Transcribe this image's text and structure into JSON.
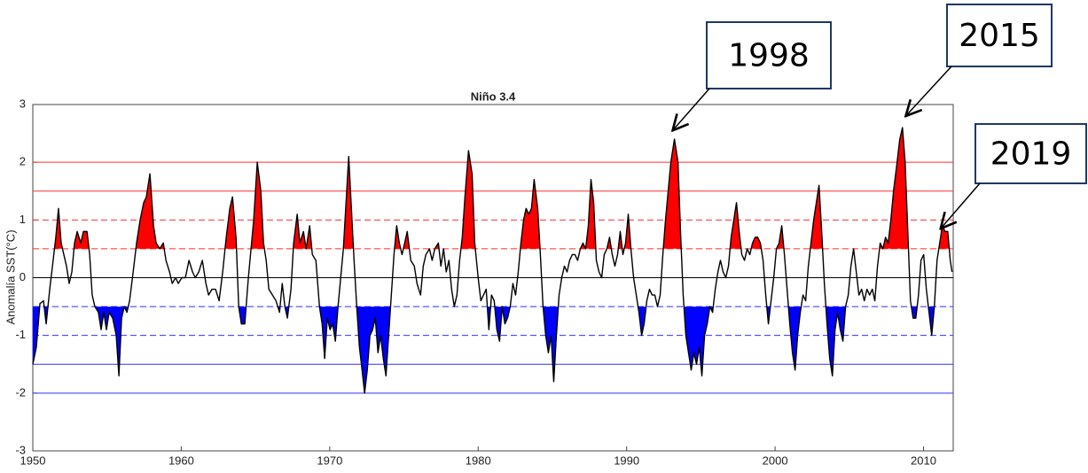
{
  "chart_data": {
    "type": "line",
    "title": "Niño 3.4",
    "y_label": "Anomalía SST(°C)",
    "xlim": [
      1950,
      2012
    ],
    "xticks": [
      1950,
      1960,
      1970,
      1980,
      1990,
      2000,
      2010
    ],
    "ylim": [
      -3,
      3
    ],
    "yticks": [
      -3,
      -2,
      -1,
      0,
      1,
      2,
      3
    ],
    "hlines": [
      {
        "y": 2,
        "color": "#ff3030",
        "style": "solid"
      },
      {
        "y": 1.5,
        "color": "#ff3030",
        "style": "solid"
      },
      {
        "y": 1,
        "color": "#ff3030",
        "style": "dashed"
      },
      {
        "y": 0.5,
        "color": "#ff3030",
        "style": "dashed"
      },
      {
        "y": 0,
        "color": "#000000",
        "style": "solid"
      },
      {
        "y": -0.5,
        "color": "#3030ff",
        "style": "dashed"
      },
      {
        "y": -1,
        "color": "#3030ff",
        "style": "dashed"
      },
      {
        "y": -1.5,
        "color": "#3030ff",
        "style": "solid"
      },
      {
        "y": -2,
        "color": "#3030ff",
        "style": "solid"
      }
    ],
    "fill_above": {
      "threshold": 0.5,
      "color": "#ff0000"
    },
    "fill_below": {
      "threshold": -0.5,
      "color": "#0000ff"
    },
    "line_color": "#000000",
    "x": [
      1950.0,
      1950.24,
      1950.48,
      1950.72,
      1950.9,
      1951.14,
      1951.37,
      1951.55,
      1951.73,
      1951.91,
      1952.09,
      1952.27,
      1952.45,
      1952.63,
      1952.81,
      1952.99,
      1953.23,
      1953.41,
      1953.65,
      1953.83,
      1954.0,
      1954.18,
      1954.42,
      1954.6,
      1954.78,
      1954.96,
      1955.14,
      1955.38,
      1955.62,
      1955.8,
      1955.98,
      1956.16,
      1956.34,
      1956.52,
      1956.76,
      1956.99,
      1957.23,
      1957.47,
      1957.65,
      1957.89,
      1958.13,
      1958.31,
      1958.55,
      1958.79,
      1958.97,
      1959.21,
      1959.39,
      1959.62,
      1959.8,
      1960.04,
      1960.28,
      1960.52,
      1960.76,
      1960.94,
      1961.18,
      1961.42,
      1961.66,
      1961.84,
      1962.07,
      1962.31,
      1962.55,
      1962.79,
      1963.03,
      1963.27,
      1963.45,
      1963.69,
      1963.87,
      1964.05,
      1964.28,
      1964.52,
      1964.7,
      1964.88,
      1965.12,
      1965.36,
      1965.54,
      1965.72,
      1965.9,
      1966.14,
      1966.38,
      1966.62,
      1966.8,
      1966.98,
      1967.15,
      1967.39,
      1967.57,
      1967.81,
      1967.99,
      1968.23,
      1968.41,
      1968.65,
      1968.83,
      1969.07,
      1969.31,
      1969.49,
      1969.66,
      1969.84,
      1970.02,
      1970.2,
      1970.38,
      1970.56,
      1970.74,
      1970.92,
      1971.1,
      1971.28,
      1971.46,
      1971.64,
      1971.82,
      1972.0,
      1972.18,
      1972.35,
      1972.53,
      1972.71,
      1972.89,
      1973.07,
      1973.25,
      1973.43,
      1973.61,
      1973.79,
      1973.97,
      1974.15,
      1974.33,
      1974.51,
      1974.69,
      1974.87,
      1975.05,
      1975.22,
      1975.46,
      1975.7,
      1975.88,
      1976.12,
      1976.3,
      1976.48,
      1976.72,
      1976.9,
      1977.08,
      1977.32,
      1977.49,
      1977.67,
      1977.85,
      1978.03,
      1978.21,
      1978.39,
      1978.57,
      1978.75,
      1978.93,
      1979.11,
      1979.35,
      1979.59,
      1979.77,
      1980.0,
      1980.18,
      1980.36,
      1980.54,
      1980.72,
      1980.9,
      1981.08,
      1981.26,
      1981.44,
      1981.62,
      1981.8,
      1981.98,
      1982.16,
      1982.34,
      1982.52,
      1982.7,
      1982.88,
      1983.06,
      1983.23,
      1983.41,
      1983.59,
      1983.77,
      1984.01,
      1984.19,
      1984.37,
      1984.55,
      1984.73,
      1984.91,
      1985.09,
      1985.27,
      1985.45,
      1985.63,
      1985.81,
      1985.99,
      1986.16,
      1986.34,
      1986.52,
      1986.7,
      1986.88,
      1987.06,
      1987.24,
      1987.42,
      1987.6,
      1987.78,
      1987.96,
      1988.14,
      1988.32,
      1988.49,
      1988.67,
      1988.85,
      1989.03,
      1989.21,
      1989.39,
      1989.57,
      1989.75,
      1989.93,
      1990.11,
      1990.29,
      1990.47,
      1990.65,
      1990.83,
      1991.01,
      1991.18,
      1991.36,
      1991.54,
      1991.72,
      1991.9,
      1992.08,
      1992.26,
      1992.44,
      1992.62,
      1992.8,
      1992.98,
      1993.22,
      1993.46,
      1993.63,
      1993.81,
      1993.99,
      1994.17,
      1994.35,
      1994.53,
      1994.71,
      1994.89,
      1995.07,
      1995.25,
      1995.43,
      1995.61,
      1995.79,
      1995.97,
      1996.15,
      1996.32,
      1996.5,
      1996.68,
      1996.86,
      1997.04,
      1997.22,
      1997.4,
      1997.58,
      1997.76,
      1997.94,
      1998.12,
      1998.3,
      1998.48,
      1998.66,
      1998.83,
      1999.01,
      1999.19,
      1999.37,
      1999.55,
      1999.73,
      1999.91,
      2000.09,
      2000.27,
      2000.45,
      2000.63,
      2000.81,
      2000.99,
      2001.17,
      2001.35,
      2001.52,
      2001.7,
      2001.88,
      2002.06,
      2002.24,
      2002.42,
      2002.6,
      2002.78,
      2002.96,
      2003.14,
      2003.32,
      2003.5,
      2003.68,
      2003.86,
      2004.04,
      2004.21,
      2004.39,
      2004.57,
      2004.75,
      2004.93,
      2005.11,
      2005.29,
      2005.47,
      2005.65,
      2005.83,
      2006.01,
      2006.19,
      2006.37,
      2006.55,
      2006.72,
      2006.9,
      2007.08,
      2007.26,
      2007.44,
      2007.62,
      2007.8,
      2007.98,
      2008.22,
      2008.4,
      2008.58,
      2008.76,
      2008.94,
      2009.12,
      2009.3,
      2009.48,
      2009.66,
      2009.83,
      2010.01,
      2010.19,
      2010.37,
      2010.55,
      2010.73,
      2010.91,
      2011.09,
      2011.27,
      2011.45,
      2011.63,
      2011.8,
      2011.92
    ],
    "values": [
      -1.5,
      -1.2,
      -0.45,
      -0.4,
      -0.8,
      -0.2,
      0.3,
      0.7,
      1.2,
      0.6,
      0.4,
      0.2,
      -0.1,
      0.1,
      0.6,
      0.8,
      0.6,
      0.8,
      0.8,
      0.4,
      -0.3,
      -0.5,
      -0.6,
      -0.9,
      -0.6,
      -0.9,
      -0.6,
      -0.7,
      -1.0,
      -1.7,
      -0.7,
      -0.5,
      -0.6,
      -0.4,
      0.1,
      0.6,
      1.0,
      1.3,
      1.4,
      1.8,
      0.9,
      0.6,
      0.5,
      0.6,
      0.3,
      0.1,
      -0.1,
      0.0,
      -0.1,
      0.0,
      0.0,
      0.3,
      0.1,
      0.0,
      0.1,
      0.3,
      -0.1,
      -0.3,
      -0.2,
      -0.2,
      -0.4,
      0.1,
      0.7,
      1.2,
      1.4,
      0.7,
      -0.5,
      -0.8,
      -0.8,
      0.0,
      0.5,
      1.0,
      2.0,
      1.5,
      0.6,
      0.3,
      -0.2,
      -0.3,
      -0.4,
      -0.6,
      -0.1,
      -0.5,
      -0.7,
      -0.2,
      0.6,
      1.1,
      0.6,
      0.8,
      0.5,
      0.9,
      0.4,
      0.3,
      -0.5,
      -0.8,
      -1.4,
      -0.7,
      -0.9,
      -0.8,
      -1.1,
      -0.5,
      0.0,
      0.5,
      1.3,
      2.1,
      1.2,
      0.3,
      -0.5,
      -1.2,
      -1.6,
      -2.0,
      -1.6,
      -1.0,
      -0.9,
      -0.7,
      -1.3,
      -1.0,
      -1.4,
      -1.7,
      -1.0,
      -0.3,
      0.4,
      0.9,
      0.6,
      0.4,
      0.6,
      0.8,
      0.3,
      0.2,
      -0.1,
      -0.3,
      0.2,
      0.4,
      0.5,
      0.3,
      0.5,
      0.6,
      0.2,
      0.5,
      0.1,
      0.3,
      -0.2,
      -0.5,
      -0.3,
      0.3,
      0.7,
      1.4,
      2.2,
      1.8,
      0.6,
      0.0,
      -0.4,
      -0.3,
      -0.2,
      -0.9,
      -0.3,
      -0.4,
      -0.9,
      -1.1,
      -0.5,
      -0.8,
      -0.7,
      -0.5,
      -0.1,
      -0.3,
      0.1,
      0.6,
      1.0,
      1.2,
      1.1,
      1.2,
      1.7,
      1.2,
      0.4,
      -0.5,
      -1.0,
      -1.3,
      -1.0,
      -1.8,
      -1.0,
      -0.3,
      0.0,
      0.2,
      0.1,
      0.3,
      0.4,
      0.4,
      0.3,
      0.5,
      0.6,
      0.5,
      0.9,
      1.7,
      1.3,
      0.3,
      0.1,
      0.0,
      0.4,
      0.5,
      0.7,
      0.4,
      0.2,
      0.4,
      0.8,
      0.4,
      0.6,
      1.1,
      0.5,
      0.0,
      -0.3,
      -0.6,
      -1.0,
      -0.8,
      -0.4,
      -0.2,
      -0.3,
      -0.3,
      -0.5,
      -0.3,
      0.4,
      1.0,
      1.5,
      2.0,
      2.4,
      2.0,
      0.8,
      -0.3,
      -1.0,
      -1.3,
      -1.6,
      -1.3,
      -1.5,
      -1.2,
      -1.7,
      -1.0,
      -0.8,
      -0.5,
      -0.6,
      -0.2,
      0.1,
      0.3,
      0.1,
      0.0,
      0.2,
      0.7,
      1.0,
      1.3,
      0.8,
      0.4,
      0.3,
      0.5,
      0.4,
      0.6,
      0.7,
      0.7,
      0.6,
      0.3,
      -0.3,
      -0.8,
      -0.4,
      0.0,
      0.5,
      0.6,
      0.9,
      0.4,
      -0.2,
      -0.8,
      -1.3,
      -1.6,
      -1.0,
      -0.6,
      -0.3,
      -0.4,
      0.2,
      0.6,
      1.0,
      1.3,
      1.6,
      0.8,
      -0.1,
      -0.8,
      -1.4,
      -1.7,
      -0.9,
      -0.6,
      -0.9,
      -1.1,
      -0.5,
      -0.3,
      0.2,
      0.5,
      0.1,
      -0.3,
      -0.2,
      -0.4,
      -0.2,
      -0.3,
      -0.2,
      -0.4,
      0.2,
      0.6,
      0.5,
      0.7,
      0.6,
      1.0,
      1.5,
      2.0,
      2.4,
      2.6,
      2.0,
      0.8,
      -0.4,
      -0.7,
      -0.7,
      -0.3,
      0.3,
      0.4,
      -0.2,
      -0.6,
      -1.0,
      -0.5,
      0.3,
      0.6,
      0.9,
      0.8,
      0.8,
      0.3,
      0.1
    ],
    "annotations": [
      {
        "text": "1998",
        "x": 1993.1,
        "y": 2.55
      },
      {
        "text": "2015",
        "x": 2008.8,
        "y": 2.8
      },
      {
        "text": "2019",
        "x": 2011.15,
        "y": 0.85
      }
    ]
  }
}
